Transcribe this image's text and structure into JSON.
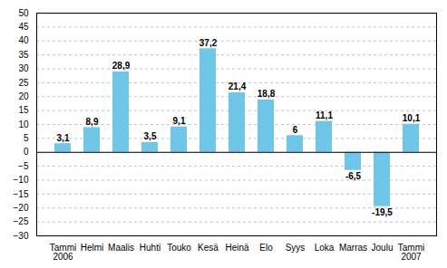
{
  "chart_data": {
    "type": "bar",
    "categories": [
      "Tammi\n2006",
      "Helmi",
      "Maalis",
      "Huhti",
      "Touko",
      "Kesä",
      "Heinä",
      "Elo",
      "Syys",
      "Loka",
      "Marras",
      "Joulu",
      "Tammi\n2007"
    ],
    "values": [
      3.1,
      8.9,
      28.9,
      3.5,
      9.1,
      37.2,
      21.4,
      18.8,
      6.0,
      11.1,
      -6.5,
      -19.5,
      10.1
    ],
    "value_labels": [
      "3,1",
      "8,9",
      "28,9",
      "3,5",
      "9,1",
      "37,2",
      "21,4",
      "18,8",
      "6",
      "11,1",
      "-6,5",
      "-19,5",
      "10,1"
    ],
    "color": "#6EC6E8",
    "ylim": [
      -30,
      50
    ],
    "yticks": [
      -30,
      -25,
      -20,
      -15,
      -10,
      -5,
      0,
      5,
      10,
      15,
      20,
      25,
      30,
      35,
      40,
      45,
      50
    ],
    "grid": true,
    "data_labels": true
  }
}
